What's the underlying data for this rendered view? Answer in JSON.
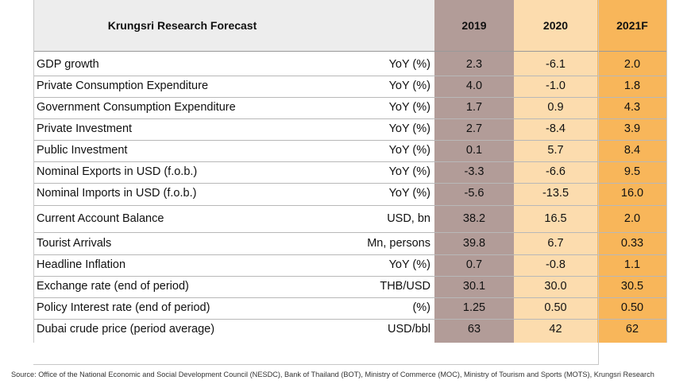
{
  "chart_data": {
    "type": "table",
    "title": "Krungsri Research Forecast",
    "columns": [
      "2019",
      "2020",
      "2021F"
    ],
    "rows": [
      {
        "label": "GDP growth",
        "unit": "YoY (%)",
        "values": [
          "2.3",
          "-6.1",
          "2.0"
        ]
      },
      {
        "label": "Private Consumption Expenditure",
        "unit": "YoY (%)",
        "values": [
          "4.0",
          "-1.0",
          "1.8"
        ]
      },
      {
        "label": "Government Consumption Expenditure",
        "unit": "YoY (%)",
        "values": [
          "1.7",
          "0.9",
          "4.3"
        ]
      },
      {
        "label": "Private Investment",
        "unit": "YoY (%)",
        "values": [
          "2.7",
          "-8.4",
          "3.9"
        ]
      },
      {
        "label": "Public Investment",
        "unit": "YoY (%)",
        "values": [
          "0.1",
          "5.7",
          "8.4"
        ]
      },
      {
        "label": "Nominal Exports in USD (f.o.b.)",
        "unit": "YoY (%)",
        "values": [
          "-3.3",
          "-6.6",
          "9.5"
        ]
      },
      {
        "label": "Nominal Imports in USD (f.o.b.)",
        "unit": "YoY (%)",
        "values": [
          "-5.6",
          "-13.5",
          "16.0"
        ]
      },
      {
        "label": "Current Account Balance",
        "unit": "USD, bn",
        "values": [
          "38.2",
          "16.5",
          "2.0"
        ]
      },
      {
        "label": "Tourist Arrivals",
        "unit": "Mn, persons",
        "values": [
          "39.8",
          "6.7",
          "0.33"
        ]
      },
      {
        "label": "Headline Inflation",
        "unit": "YoY (%)",
        "values": [
          "0.7",
          "-0.8",
          "1.1"
        ]
      },
      {
        "label": "Exchange rate (end of period)",
        "unit": "THB/USD",
        "values": [
          "30.1",
          "30.0",
          "30.5"
        ]
      },
      {
        "label": "Policy Interest rate (end of period)",
        "unit": "(%)",
        "values": [
          "1.25",
          "0.50",
          "0.50"
        ]
      },
      {
        "label": "Dubai crude price (period average)",
        "unit": "USD/bbl",
        "values": [
          "63",
          "42",
          "62"
        ]
      }
    ],
    "colors": {
      "header_left": "#ededed",
      "col_2019": "#b29c98",
      "col_2020": "#fcdcae",
      "col_2021F": "#f8b65a"
    }
  },
  "source": "Source: Office of the National Economic and Social Development Council (NESDC), Bank of Thailand (BOT), Ministry of Commerce (MOC), Ministry of Tourism and Sports (MOTS), Krungsri Research"
}
